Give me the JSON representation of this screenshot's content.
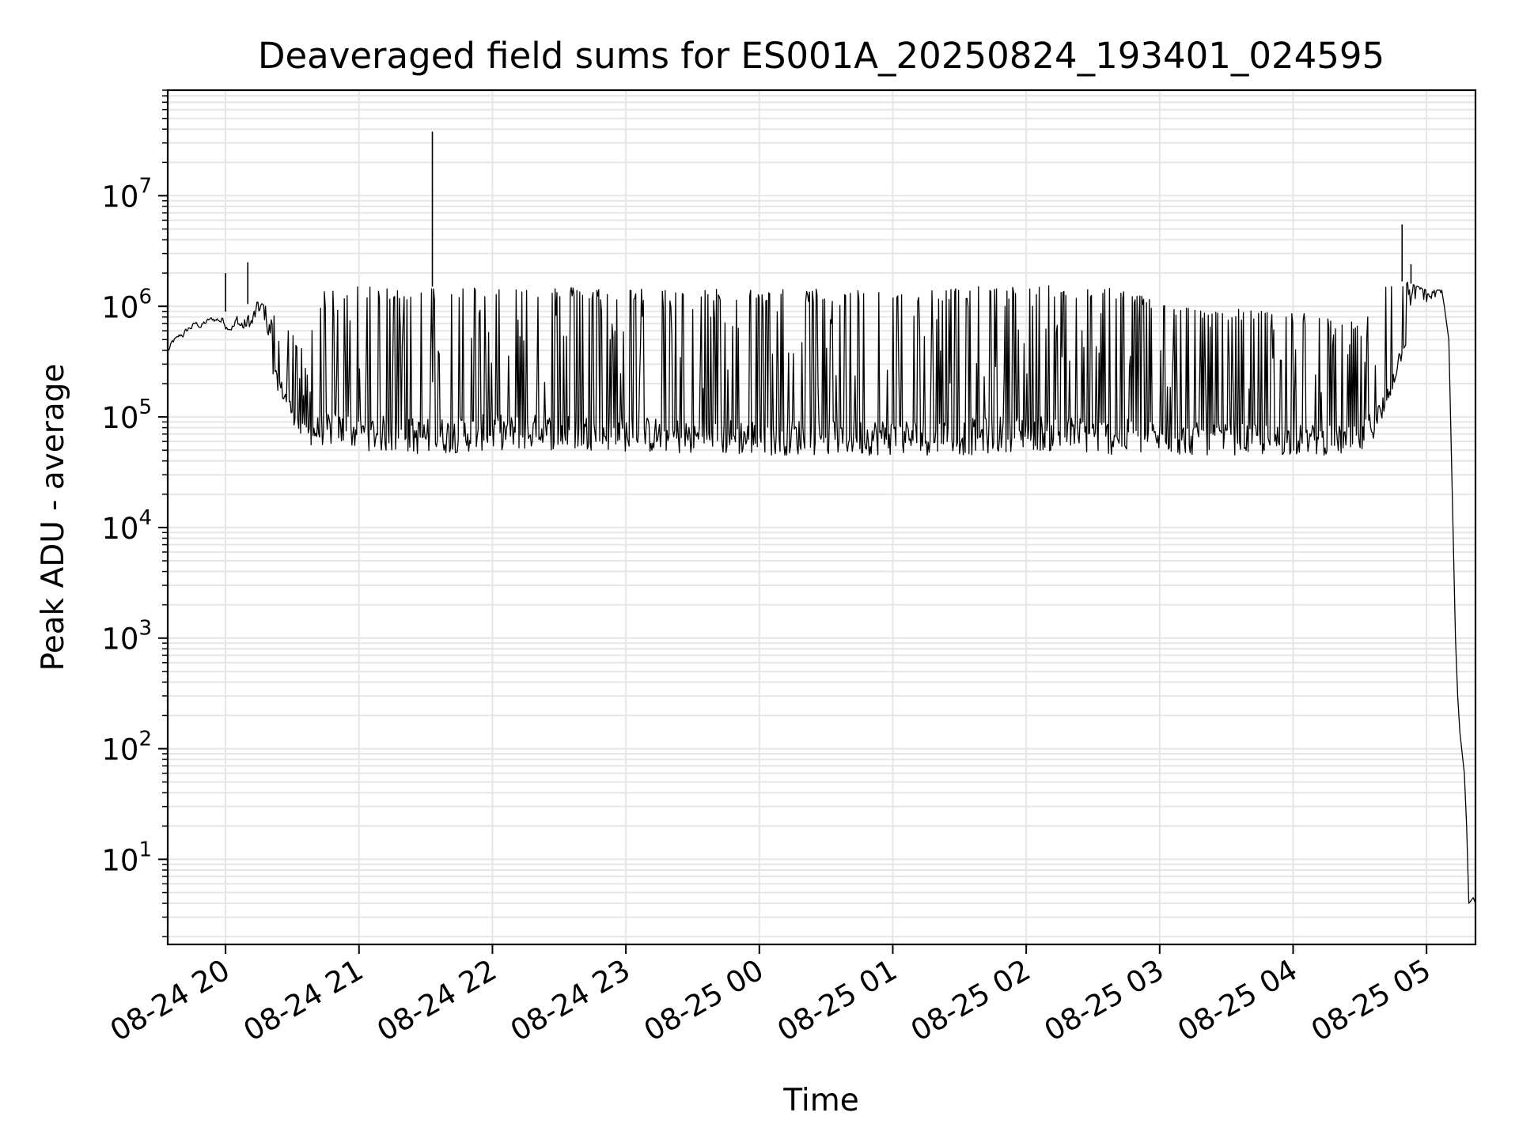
{
  "chart_data": {
    "type": "line",
    "title": "Deaveraged field sums for ES001A_20250824_193401_024595",
    "xlabel": "Time",
    "ylabel": "Peak ADU - average",
    "y_scale": "log",
    "grid": true,
    "line_color": "#000000",
    "grid_color": "#e6e6e6",
    "xlim": [
      "2025-08-24 19:34",
      "2025-08-25 05:22"
    ],
    "ylim": [
      1.7,
      90000000
    ],
    "x_ticks": [
      {
        "value": "2025-08-24 20:00",
        "label": "08-24 20"
      },
      {
        "value": "2025-08-24 21:00",
        "label": "08-24 21"
      },
      {
        "value": "2025-08-24 22:00",
        "label": "08-24 22"
      },
      {
        "value": "2025-08-24 23:00",
        "label": "08-24 23"
      },
      {
        "value": "2025-08-25 00:00",
        "label": "08-25 00"
      },
      {
        "value": "2025-08-25 01:00",
        "label": "08-25 01"
      },
      {
        "value": "2025-08-25 02:00",
        "label": "08-25 02"
      },
      {
        "value": "2025-08-25 03:00",
        "label": "08-25 03"
      },
      {
        "value": "2025-08-25 04:00",
        "label": "08-25 04"
      },
      {
        "value": "2025-08-25 05:00",
        "label": "08-25 05"
      }
    ],
    "y_ticks": [
      {
        "value": 10,
        "base": "10",
        "exp": "1"
      },
      {
        "value": 100,
        "base": "10",
        "exp": "2"
      },
      {
        "value": 1000,
        "base": "10",
        "exp": "3"
      },
      {
        "value": 10000,
        "base": "10",
        "exp": "4"
      },
      {
        "value": 100000,
        "base": "10",
        "exp": "5"
      },
      {
        "value": 1000000,
        "base": "10",
        "exp": "6"
      },
      {
        "value": 10000000,
        "base": "10",
        "exp": "7"
      }
    ],
    "series": [
      {
        "envelope": [
          {
            "t": "2025-08-24 19:34",
            "low": 350000,
            "high": 450000
          },
          {
            "t": "2025-08-24 19:45",
            "low": 550000,
            "high": 700000
          },
          {
            "t": "2025-08-24 19:55",
            "low": 650000,
            "high": 800000
          },
          {
            "t": "2025-08-24 20:05",
            "low": 600000,
            "high": 1000000
          },
          {
            "t": "2025-08-24 20:15",
            "low": 400000,
            "high": 1100000
          },
          {
            "t": "2025-08-24 20:25",
            "low": 150000,
            "high": 800000
          },
          {
            "t": "2025-08-24 20:35",
            "low": 55000,
            "high": 400000
          },
          {
            "t": "2025-08-24 20:45",
            "low": 55000,
            "high": 1500000
          },
          {
            "t": "2025-08-24 21:00",
            "low": 50000,
            "high": 1500000
          },
          {
            "t": "2025-08-24 21:30",
            "low": 45000,
            "high": 1500000
          },
          {
            "t": "2025-08-24 22:00",
            "low": 50000,
            "high": 1550000
          },
          {
            "t": "2025-08-24 22:45",
            "low": 50000,
            "high": 1500000
          },
          {
            "t": "2025-08-24 23:30",
            "low": 45000,
            "high": 1450000
          },
          {
            "t": "2025-08-25 00:15",
            "low": 45000,
            "high": 1450000
          },
          {
            "t": "2025-08-25 01:00",
            "low": 45000,
            "high": 1450000
          },
          {
            "t": "2025-08-25 01:35",
            "low": 45000,
            "high": 1500000
          },
          {
            "t": "2025-08-25 02:00",
            "low": 50000,
            "high": 1550000
          },
          {
            "t": "2025-08-25 02:40",
            "low": 45000,
            "high": 1500000
          },
          {
            "t": "2025-08-25 03:10",
            "low": 45000,
            "high": 1000000
          },
          {
            "t": "2025-08-25 04:00",
            "low": 45000,
            "high": 900000
          },
          {
            "t": "2025-08-25 04:30",
            "low": 45000,
            "high": 700000
          },
          {
            "t": "2025-08-25 04:40",
            "low": 80000,
            "high": 1500000
          },
          {
            "t": "2025-08-25 04:50",
            "low": 400000,
            "high": 1700000
          },
          {
            "t": "2025-08-25 05:00",
            "low": 600000,
            "high": 1400000
          },
          {
            "t": "2025-08-25 05:07",
            "low": 1000000,
            "high": 1400000
          }
        ],
        "decay": [
          {
            "t": "2025-08-25 05:08",
            "y": 1000000
          },
          {
            "t": "2025-08-25 05:10",
            "y": 500000
          },
          {
            "t": "2025-08-25 05:13",
            "y": 1000
          },
          {
            "t": "2025-08-25 05:14",
            "y": 300
          },
          {
            "t": "2025-08-25 05:15",
            "y": 140
          },
          {
            "t": "2025-08-25 05:17",
            "y": 60
          },
          {
            "t": "2025-08-25 05:18",
            "y": 20
          },
          {
            "t": "2025-08-25 05:19",
            "y": 4
          },
          {
            "t": "2025-08-25 05:21",
            "y": 4.5
          },
          {
            "t": "2025-08-25 05:22",
            "y": 4
          }
        ],
        "spikes": [
          {
            "t": "2025-08-24 20:00",
            "y": 2000000
          },
          {
            "t": "2025-08-24 20:10",
            "y": 2500000
          },
          {
            "t": "2025-08-24 21:33",
            "y": 38000000
          },
          {
            "t": "2025-08-25 04:49",
            "y": 5500000
          },
          {
            "t": "2025-08-25 04:53",
            "y": 2400000
          }
        ]
      }
    ]
  }
}
